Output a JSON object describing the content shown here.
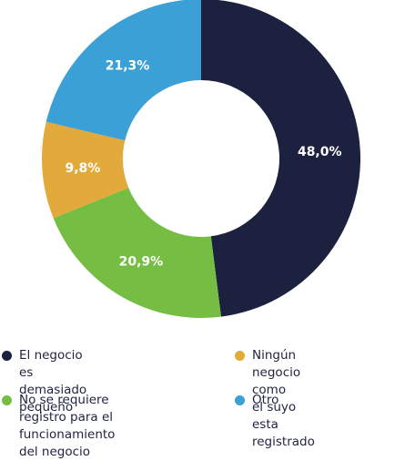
{
  "chart_data": {
    "type": "pie",
    "donut": true,
    "categories": [
      "El negocio es\ndemasiado pequeño",
      "No se requiere registro para el\nfuncionamiento del negocio",
      "Ningún negocio como\nel suyo esta registrado",
      "Otro"
    ],
    "values": [
      48.0,
      20.9,
      9.8,
      21.3
    ],
    "value_labels": [
      "48,0%",
      "20,9%",
      "9,8%",
      "21,3%"
    ],
    "colors": [
      "#1c2140",
      "#75bd43",
      "#e2a93b",
      "#3ba0d6"
    ],
    "legend_placement": "bottom",
    "title": ""
  }
}
